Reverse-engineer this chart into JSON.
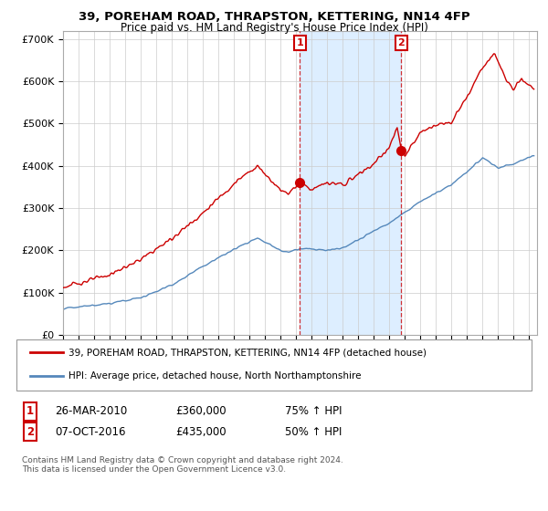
{
  "title1": "39, POREHAM ROAD, THRAPSTON, KETTERING, NN14 4FP",
  "title2": "Price paid vs. HM Land Registry's House Price Index (HPI)",
  "legend_line1": "39, POREHAM ROAD, THRAPSTON, KETTERING, NN14 4FP (detached house)",
  "legend_line2": "HPI: Average price, detached house, North Northamptonshire",
  "annotation1_label": "1",
  "annotation1_date": "26-MAR-2010",
  "annotation1_price": "£360,000",
  "annotation1_pct": "75% ↑ HPI",
  "annotation2_label": "2",
  "annotation2_date": "07-OCT-2016",
  "annotation2_price": "£435,000",
  "annotation2_pct": "50% ↑ HPI",
  "footnote": "Contains HM Land Registry data © Crown copyright and database right 2024.\nThis data is licensed under the Open Government Licence v3.0.",
  "red_color": "#cc0000",
  "blue_color": "#5588bb",
  "shade_color": "#ddeeff",
  "annotation_color": "#cc0000",
  "ylim": [
    0,
    720000
  ],
  "yticks": [
    0,
    100000,
    200000,
    300000,
    400000,
    500000,
    600000,
    700000
  ],
  "ytick_labels": [
    "£0",
    "£100K",
    "£200K",
    "£300K",
    "£400K",
    "£500K",
    "£600K",
    "£700K"
  ],
  "sale1_x": 2010.23,
  "sale1_y": 360000,
  "sale2_x": 2016.76,
  "sale2_y": 435000,
  "xmin": 1995,
  "xmax": 2025.5
}
